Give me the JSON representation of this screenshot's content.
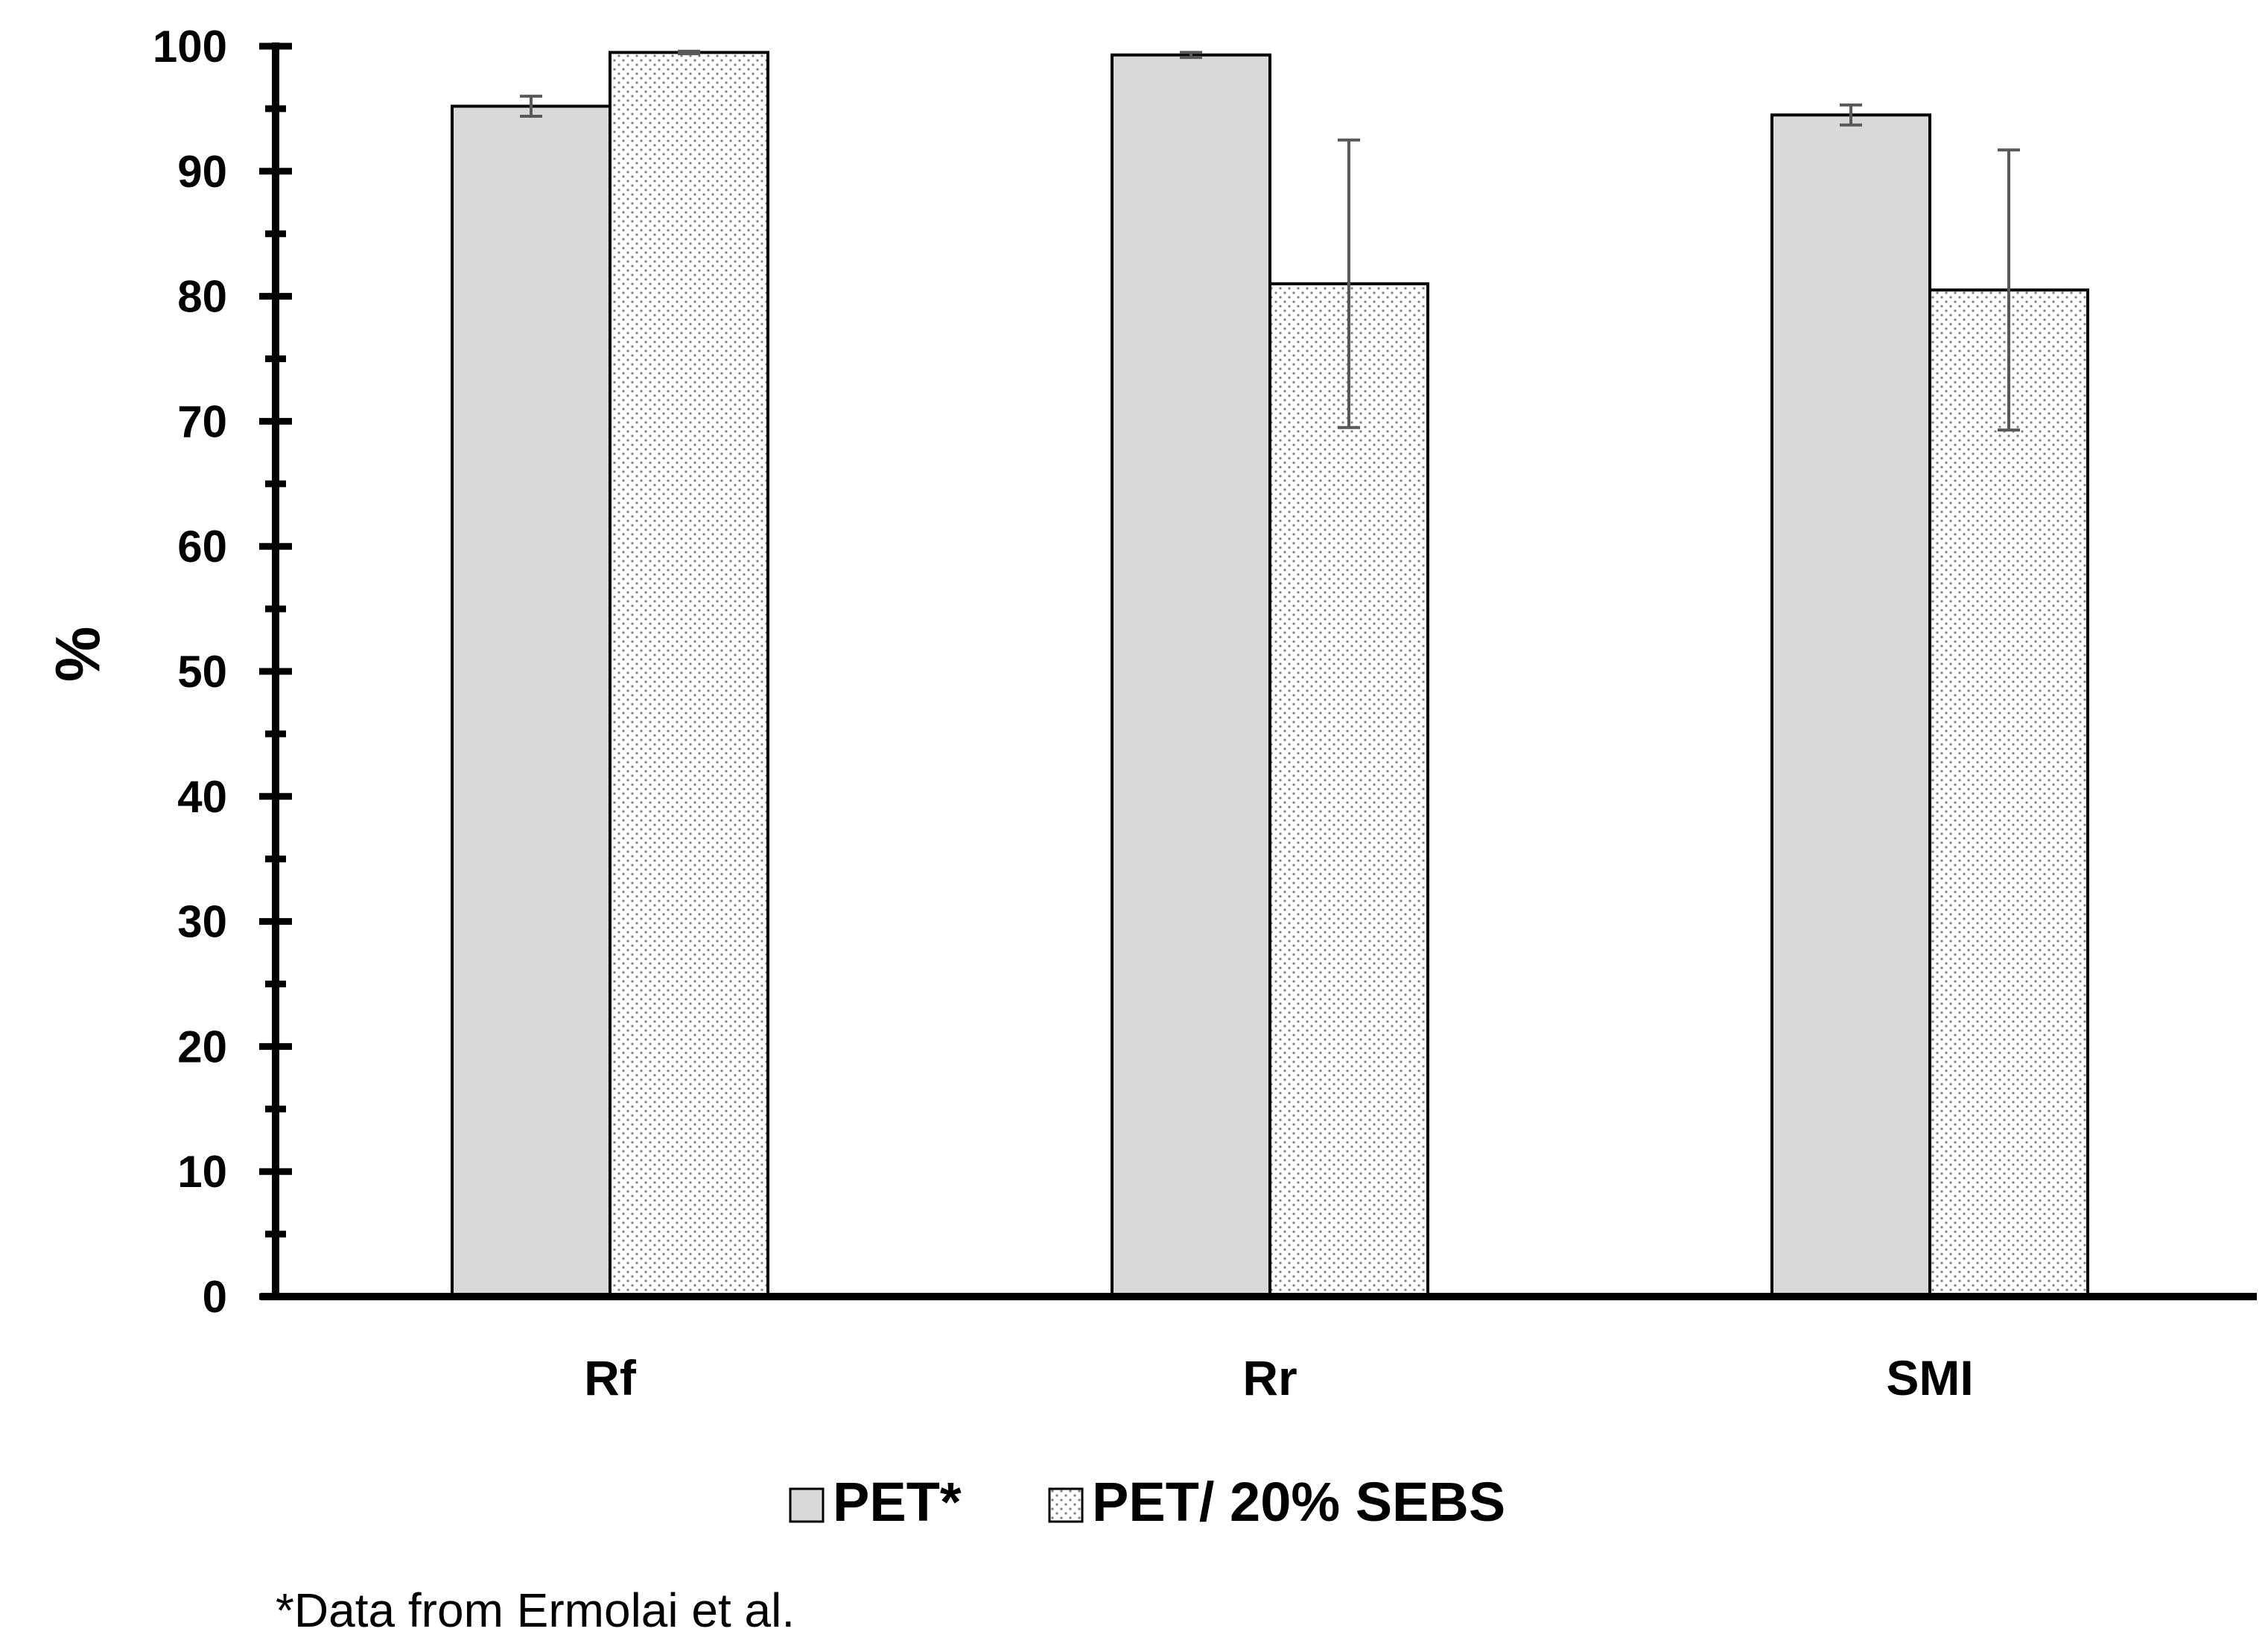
{
  "chart_data": {
    "type": "bar",
    "title": "",
    "xlabel": "",
    "ylabel": "%",
    "ylim": [
      0,
      100
    ],
    "y_major_step": 10,
    "y_minor_step": 5,
    "categories": [
      "Rf",
      "Rr",
      "SMI"
    ],
    "series": [
      {
        "name": "PET*",
        "values": [
          95.2,
          99.3,
          94.5
        ],
        "errors": [
          0.8,
          0.2,
          0.8
        ],
        "fill": "#d9d9d9",
        "pattern": "solid"
      },
      {
        "name": "PET/ 20% SEBS",
        "values": [
          99.5,
          81.0,
          80.5
        ],
        "errors": [
          0.1,
          11.5,
          11.2
        ],
        "fill": "#ffffff",
        "pattern": "dots"
      }
    ],
    "grid": false,
    "legend_position": "bottom-center",
    "footnote": "*Data from Ermolai et al.",
    "colors": {
      "axis": "#000000",
      "bar_outline": "#000000",
      "error_bar": "#595959",
      "dot": "#808080"
    }
  }
}
